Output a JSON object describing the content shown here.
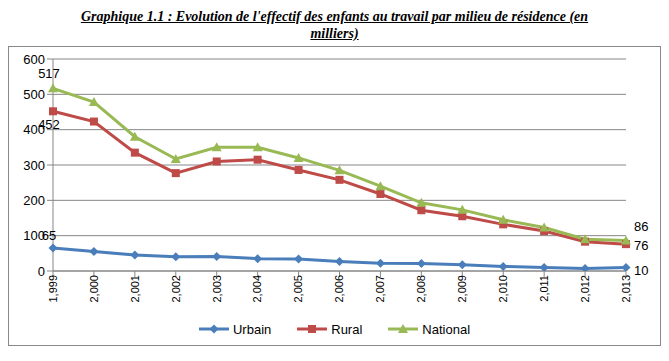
{
  "chart_data": {
    "type": "line",
    "title": "Graphique 1.1 : Evolution de l'effectif des enfants au travail par milieu de résidence (en milliers)",
    "categories": [
      "1,999",
      "2,000",
      "2,001",
      "2,002",
      "2,003",
      "2,004",
      "2,005",
      "2,006",
      "2,007",
      "2,008",
      "2,009",
      "2,010",
      "2,011",
      "2,012",
      "2,013"
    ],
    "series": [
      {
        "name": "Urbain",
        "color": "#4a7ebb",
        "marker": "diamond",
        "line_style": "solid",
        "values": [
          65,
          55,
          45,
          40,
          41,
          35,
          34,
          27,
          22,
          21,
          18,
          13,
          10,
          7,
          10
        ],
        "value_labels": [
          "65",
          null,
          null,
          null,
          null,
          null,
          null,
          null,
          null,
          null,
          null,
          null,
          null,
          null,
          "10"
        ]
      },
      {
        "name": "Rural",
        "color": "#be4b48",
        "marker": "square",
        "line_style": "solid",
        "values": [
          452,
          423,
          335,
          277,
          310,
          315,
          286,
          258,
          218,
          172,
          155,
          132,
          113,
          83,
          76
        ],
        "value_labels": [
          "452",
          null,
          null,
          null,
          null,
          null,
          null,
          null,
          null,
          null,
          null,
          null,
          null,
          null,
          "76"
        ]
      },
      {
        "name": "National",
        "color": "#98b954",
        "marker": "triangle",
        "line_style": "solid",
        "values": [
          517,
          478,
          380,
          317,
          350,
          350,
          320,
          285,
          240,
          193,
          173,
          145,
          123,
          90,
          86
        ],
        "value_labels": [
          "517",
          null,
          null,
          null,
          null,
          null,
          null,
          null,
          null,
          null,
          null,
          null,
          null,
          null,
          "86"
        ]
      }
    ],
    "ylim": [
      0,
      600
    ],
    "yticks": [
      0,
      100,
      200,
      300,
      400,
      500,
      600
    ],
    "grid": true,
    "legend": "bottom"
  }
}
